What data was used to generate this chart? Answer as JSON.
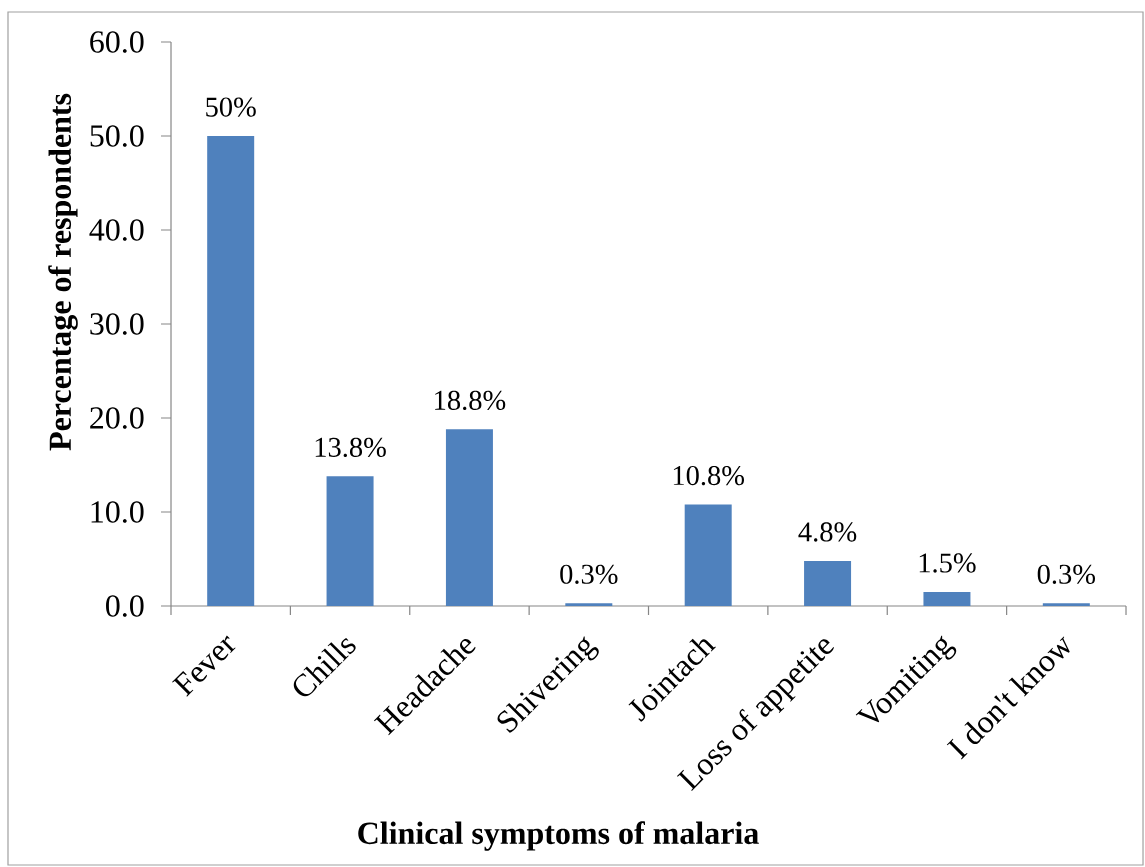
{
  "chart_data": {
    "type": "bar",
    "xlabel": "Clinical symptoms of malaria",
    "ylabel": "Percentage of respondents",
    "categories": [
      "Fever",
      "Chills",
      "Headache",
      "Shivering",
      "Jointach",
      "Loss of appetite",
      "Vomiting",
      "I don't know"
    ],
    "values": [
      50,
      13.8,
      18.8,
      0.3,
      10.8,
      4.8,
      1.5,
      0.3
    ],
    "value_labels": [
      "50%",
      "13.8%",
      "18.8%",
      "0.3%",
      "10.8%",
      "4.8%",
      "1.5%",
      "0.3%"
    ],
    "color": "#4f81bd",
    "ylim": [
      0,
      60
    ],
    "yticks": [
      {
        "value": 0,
        "label": "0.0"
      },
      {
        "value": 10,
        "label": "10.0"
      },
      {
        "value": 20,
        "label": "20.0"
      },
      {
        "value": 30,
        "label": "30.0"
      },
      {
        "value": 40,
        "label": "40.0"
      },
      {
        "value": 50,
        "label": "50.0"
      },
      {
        "value": 60,
        "label": "60.0"
      }
    ]
  }
}
